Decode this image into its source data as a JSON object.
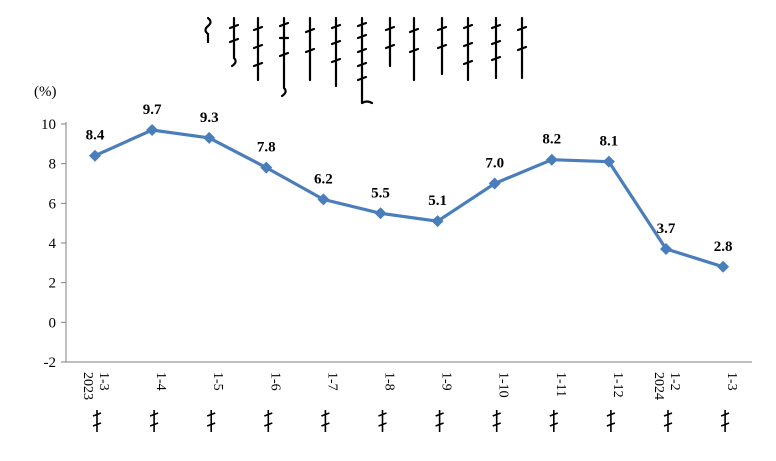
{
  "chart_data": {
    "type": "line",
    "title": "",
    "unit_label": "(%)",
    "xlabel": "",
    "ylabel": "",
    "ylim": [
      -2,
      10
    ],
    "yticks": [
      -2,
      0,
      2,
      4,
      6,
      8,
      10
    ],
    "grid": false,
    "legend": "none",
    "categories": [
      [
        "1-3",
        "2023"
      ],
      [
        "1-4"
      ],
      [
        "1-5"
      ],
      [
        "1-6"
      ],
      [
        "1-7"
      ],
      [
        "1-8"
      ],
      [
        "1-9"
      ],
      [
        "1-10"
      ],
      [
        "1-11"
      ],
      [
        "1-12"
      ],
      [
        "1-2",
        "2024"
      ],
      [
        "1-3"
      ]
    ],
    "series": [
      {
        "values": [
          8.4,
          9.7,
          9.3,
          7.8,
          6.2,
          5.5,
          5.1,
          7.0,
          8.2,
          8.1,
          3.7,
          2.8
        ],
        "labels": [
          "8.4",
          "9.7",
          "9.3",
          "7.8",
          "6.2",
          "5.5",
          "5.1",
          "7.0",
          "8.2",
          "8.1",
          "3.7",
          "2.8"
        ],
        "color": "#4a7ebb",
        "marker": "diamond"
      }
    ],
    "axis_color": "#7f7f7f"
  }
}
